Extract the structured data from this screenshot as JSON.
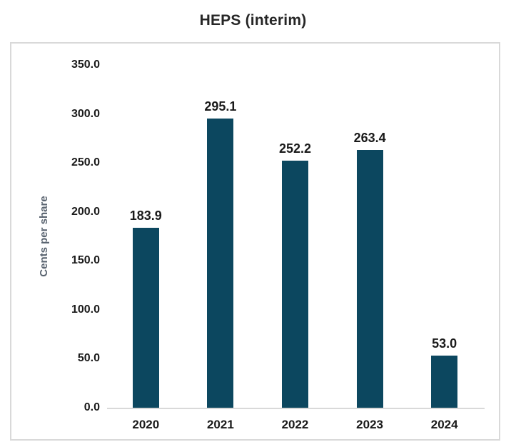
{
  "chart_data": {
    "type": "bar",
    "title": "HEPS (interim)",
    "ylabel": "Cents per share",
    "xlabel": "",
    "categories": [
      "2020",
      "2021",
      "2022",
      "2023",
      "2024"
    ],
    "values": [
      183.9,
      295.1,
      252.2,
      263.4,
      53.0
    ],
    "data_labels": [
      "183.9",
      "295.1",
      "252.2",
      "263.4",
      "53.0"
    ],
    "ylim": [
      0,
      350
    ],
    "ytick_step": 50,
    "ytick_labels": [
      "0.0",
      "50.0",
      "100.0",
      "150.0",
      "200.0",
      "250.0",
      "300.0",
      "350.0"
    ],
    "grid": false,
    "legend": "none",
    "colors": {
      "bar": "#0c475f",
      "axis_line": "#d9d9d9",
      "panel_border": "#d9d9d9",
      "title_text": "#262626",
      "label_text": "#1a1a1a",
      "ylabel_text": "#5a6470",
      "background": "#ffffff"
    }
  }
}
